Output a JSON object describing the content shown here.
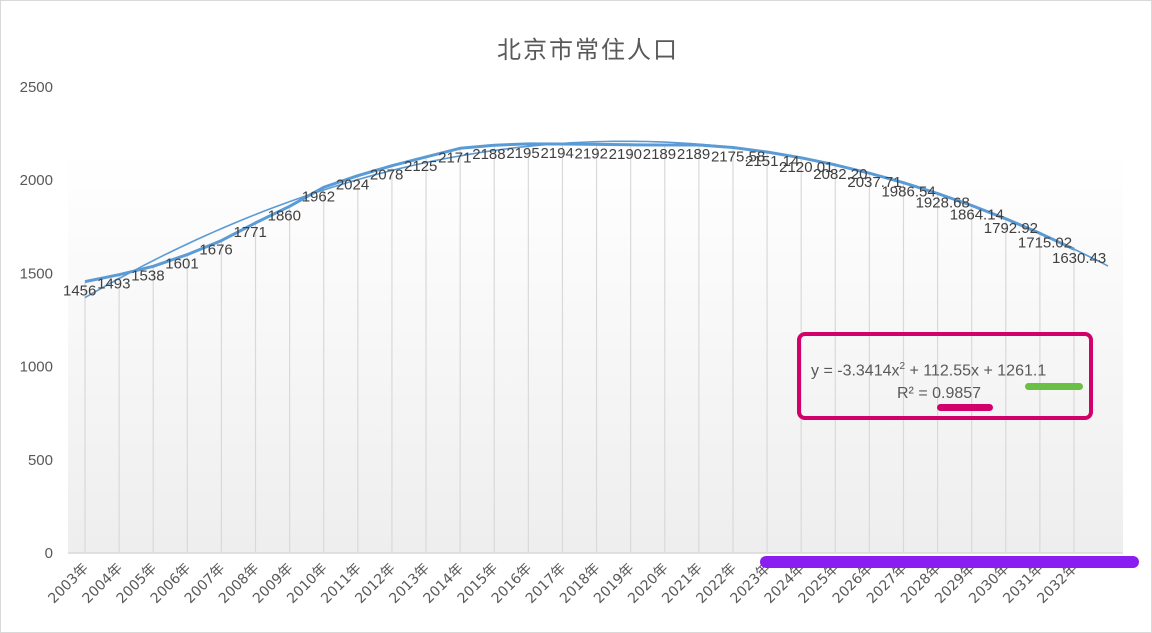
{
  "chart": {
    "title": "北京市常住人口",
    "equation": "y = -3.3414x² + 112.55x + 1261.1",
    "equation_parts": {
      "prefix": "y = -3.3414x",
      "sup": "2",
      "suffix": " + 112.55x + 1261.1"
    },
    "r_squared_label": "R² = 0.9857",
    "annotation_colors": {
      "box": "#d1006b",
      "underline_r2": "#d1006b",
      "underline_const": "#6abf45",
      "underline_axis": "#8a1ef0"
    }
  },
  "chart_data": {
    "type": "line",
    "title": "北京市常住人口",
    "xlabel": "",
    "ylabel": "",
    "ylim": [
      0,
      2500
    ],
    "yticks": [
      0,
      500,
      1000,
      1500,
      2000,
      2500
    ],
    "grid": "vertical",
    "legend": "none",
    "categories": [
      "2003年",
      "2004年",
      "2005年",
      "2006年",
      "2007年",
      "2008年",
      "2009年",
      "2010年",
      "2011年",
      "2012年",
      "2013年",
      "2014年",
      "2015年",
      "2016年",
      "2017年",
      "2018年",
      "2019年",
      "2020年",
      "2021年",
      "2022年",
      "2023年",
      "2024年",
      "2025年",
      "2026年",
      "2027年",
      "2028年",
      "2029年",
      "2030年",
      "2031年",
      "2032年"
    ],
    "series": [
      {
        "name": "北京市常住人口",
        "color": "#5b9bd5",
        "values": [
          1456,
          1493,
          1538,
          1601,
          1676,
          1771,
          1860,
          1962,
          2024,
          2078,
          2125,
          2171,
          2188,
          2195,
          2194,
          2192,
          2190,
          2189,
          2189,
          2175.58,
          2151.14,
          2120.01,
          2082.2,
          2037.71,
          1986.54,
          1928.68,
          1864.14,
          1792.92,
          1715.02,
          1630.43
        ],
        "labels": [
          "1456",
          "1493",
          "1538",
          "1601",
          "1676",
          "1771",
          "1860",
          "1962",
          "2024",
          "2078",
          "2125",
          "2171",
          "2188",
          "2195",
          "2194",
          "2192",
          "2190",
          "2189",
          "2189",
          "2175.58",
          "2151.14",
          "2120.01",
          "2082.20",
          "2037.71",
          "1986.54",
          "1928.68",
          "1864.14",
          "1792.92",
          "1715.02",
          "1630.43"
        ]
      }
    ],
    "trendline": {
      "type": "polynomial",
      "order": 2,
      "equation": "y = -3.3414x² + 112.55x + 1261.1",
      "coefficients": {
        "a": -3.3414,
        "b": 112.55,
        "c": 1261.1
      },
      "r_squared": 0.9857,
      "color": "#5b9bd5"
    }
  }
}
